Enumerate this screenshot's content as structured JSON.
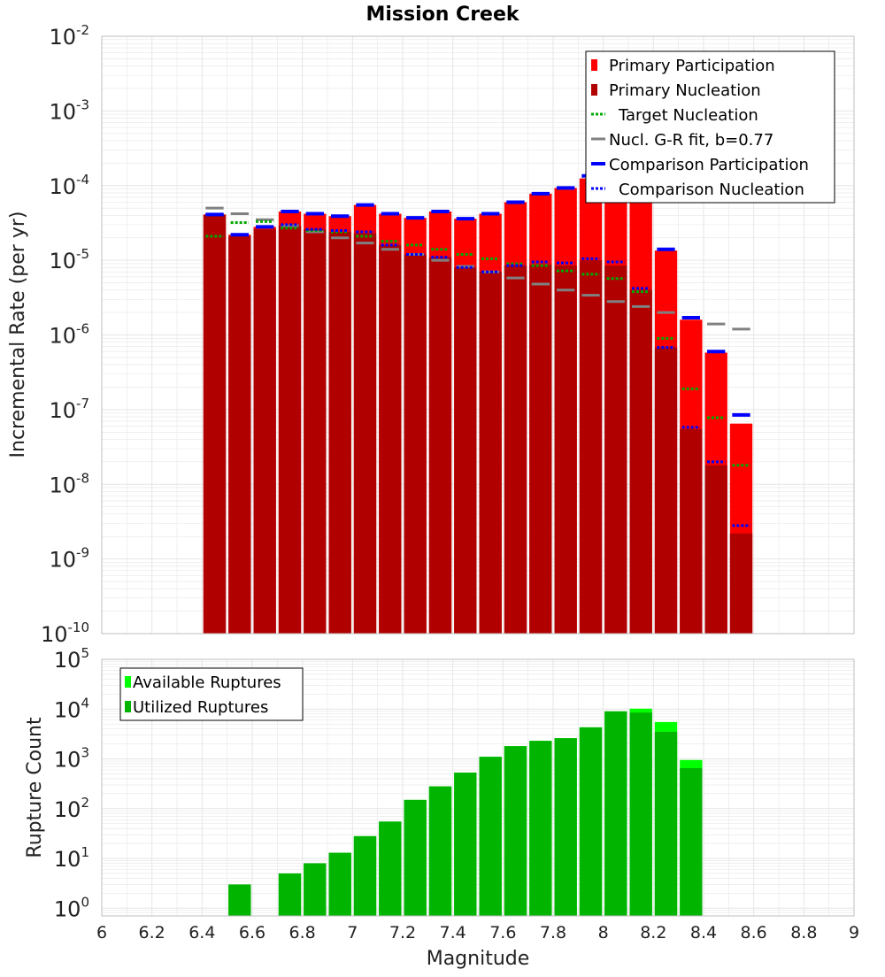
{
  "title": "Mission Creek",
  "colors": {
    "primary_participation": "#ff0000",
    "primary_nucleation": "#b00000",
    "target_nucleation": "#00aa00",
    "gr_fit": "#808080",
    "comparison_participation": "#0000ff",
    "comparison_nucleation": "#0000ff",
    "available_ruptures": "#00ff00",
    "utilized_ruptures": "#00b400",
    "grid": "#e6e6e6",
    "axis_border": "#bfbfbf"
  },
  "chart_data": [
    {
      "type": "bar",
      "ylabel": "Incremental Rate (per yr)",
      "yscale": "log",
      "ylim": [
        1e-10,
        0.01
      ],
      "xlim": [
        6,
        9
      ],
      "ytick_labels": [
        {
          "base": "10",
          "exp": "-10"
        },
        {
          "base": "10",
          "exp": "-9"
        },
        {
          "base": "10",
          "exp": "-8"
        },
        {
          "base": "10",
          "exp": "-7"
        },
        {
          "base": "10",
          "exp": "-6"
        },
        {
          "base": "10",
          "exp": "-5"
        },
        {
          "base": "10",
          "exp": "-4"
        },
        {
          "base": "10",
          "exp": "-3"
        },
        {
          "base": "10",
          "exp": "-2"
        }
      ],
      "legend_position": "top-right",
      "bin_width": 0.1,
      "x": [
        6.45,
        6.55,
        6.65,
        6.75,
        6.85,
        6.95,
        7.05,
        7.15,
        7.25,
        7.35,
        7.45,
        7.55,
        7.65,
        7.75,
        7.85,
        7.95,
        8.05,
        8.15,
        8.25,
        8.35,
        8.45,
        8.55
      ],
      "series": [
        {
          "name": "Primary Participation",
          "style": "bar",
          "values": [
            4.1e-05,
            2.2e-05,
            2.8e-05,
            4.5e-05,
            4.2e-05,
            3.9e-05,
            5.5e-05,
            4.2e-05,
            3.7e-05,
            4.5e-05,
            3.6e-05,
            4.2e-05,
            6e-05,
            7.8e-05,
            9.3e-05,
            0.000125,
            0.00012,
            7e-05,
            1.35e-05,
            1.6e-06,
            5.8e-07,
            6.5e-08
          ]
        },
        {
          "name": "Primary Nucleation",
          "style": "bar",
          "values": [
            4.1e-05,
            2.1e-05,
            2.6e-05,
            2.9e-05,
            2.6e-05,
            2.4e-05,
            2.3e-05,
            1.6e-05,
            1.2e-05,
            1.1e-05,
            8e-06,
            7e-06,
            8.5e-06,
            8.8e-06,
            8.5e-06,
            1e-05,
            8.5e-06,
            4e-06,
            6.8e-07,
            5.5e-08,
            1.8e-08,
            2.2e-09
          ]
        },
        {
          "name": "Target Nucleation",
          "style": "dotted",
          "values": [
            2.1e-05,
            3.2e-05,
            3.3e-05,
            2.7e-05,
            2.5e-05,
            2.4e-05,
            2.1e-05,
            1.8e-05,
            1.6e-05,
            1.4e-05,
            1.2e-05,
            1.05e-05,
            9e-06,
            8.5e-06,
            7.2e-06,
            6.5e-06,
            5.7e-06,
            3.8e-06,
            9e-07,
            1.9e-07,
            7.8e-08,
            1.8e-08
          ]
        },
        {
          "name": "Nucl. G-R fit, b=0.77",
          "style": "dash",
          "values": [
            5e-05,
            4.2e-05,
            3.5e-05,
            2.9e-05,
            2.4e-05,
            2e-05,
            1.7e-05,
            1.4e-05,
            1.2e-05,
            1e-05,
            8.3e-06,
            7e-06,
            5.8e-06,
            4.8e-06,
            4e-06,
            3.4e-06,
            2.8e-06,
            2.4e-06,
            2e-06,
            1.7e-06,
            1.4e-06,
            1.2e-06
          ]
        },
        {
          "name": "Comparison Participation",
          "style": "solid",
          "values": [
            4.1e-05,
            2.2e-05,
            2.8e-05,
            4.5e-05,
            4.2e-05,
            3.9e-05,
            5.5e-05,
            4.2e-05,
            3.7e-05,
            4.5e-05,
            3.6e-05,
            4.2e-05,
            6e-05,
            7.8e-05,
            9.3e-05,
            0.000135,
            0.00013,
            7e-05,
            1.4e-05,
            1.7e-06,
            6e-07,
            8.5e-08
          ]
        },
        {
          "name": "Comparison Nucleation",
          "style": "dotted",
          "values": [
            4.1e-05,
            2.2e-05,
            2.8e-05,
            3e-05,
            2.6e-05,
            2.5e-05,
            2.4e-05,
            1.6e-05,
            1.2e-05,
            1.1e-05,
            8e-06,
            7e-06,
            8.5e-06,
            9.5e-06,
            9.2e-06,
            1.05e-05,
            9.5e-06,
            4.2e-06,
            6.8e-07,
            5.8e-08,
            2e-08,
            2.8e-09
          ]
        }
      ]
    },
    {
      "type": "bar",
      "xlabel": "Magnitude",
      "ylabel": "Rupture Count",
      "yscale": "log",
      "ylim": [
        0.7,
        100000
      ],
      "xlim": [
        6,
        9
      ],
      "xtick_labels": [
        "6",
        "6.2",
        "6.4",
        "6.6",
        "6.8",
        "7",
        "7.2",
        "7.4",
        "7.6",
        "7.8",
        "8",
        "8.2",
        "8.4",
        "8.6",
        "8.8",
        "9"
      ],
      "ytick_labels": [
        {
          "base": "10",
          "exp": "0"
        },
        {
          "base": "10",
          "exp": "1"
        },
        {
          "base": "10",
          "exp": "2"
        },
        {
          "base": "10",
          "exp": "3"
        },
        {
          "base": "10",
          "exp": "4"
        },
        {
          "base": "10",
          "exp": "5"
        }
      ],
      "legend_position": "top-left",
      "bin_width": 0.1,
      "x": [
        6.55,
        6.75,
        6.85,
        6.95,
        7.05,
        7.15,
        7.25,
        7.35,
        7.45,
        7.55,
        7.65,
        7.75,
        7.85,
        7.95,
        8.05,
        8.15,
        8.25,
        8.35
      ],
      "series": [
        {
          "name": "Available Ruptures",
          "values": [
            3,
            5,
            8,
            13,
            28,
            55,
            150,
            280,
            530,
            1100,
            1800,
            2300,
            2600,
            4300,
            9000,
            10200,
            5500,
            950
          ]
        },
        {
          "name": "Utilized Ruptures",
          "values": [
            3,
            5,
            8,
            13,
            28,
            55,
            150,
            280,
            530,
            1100,
            1800,
            2300,
            2600,
            4300,
            9000,
            8500,
            3500,
            650
          ]
        }
      ]
    }
  ]
}
